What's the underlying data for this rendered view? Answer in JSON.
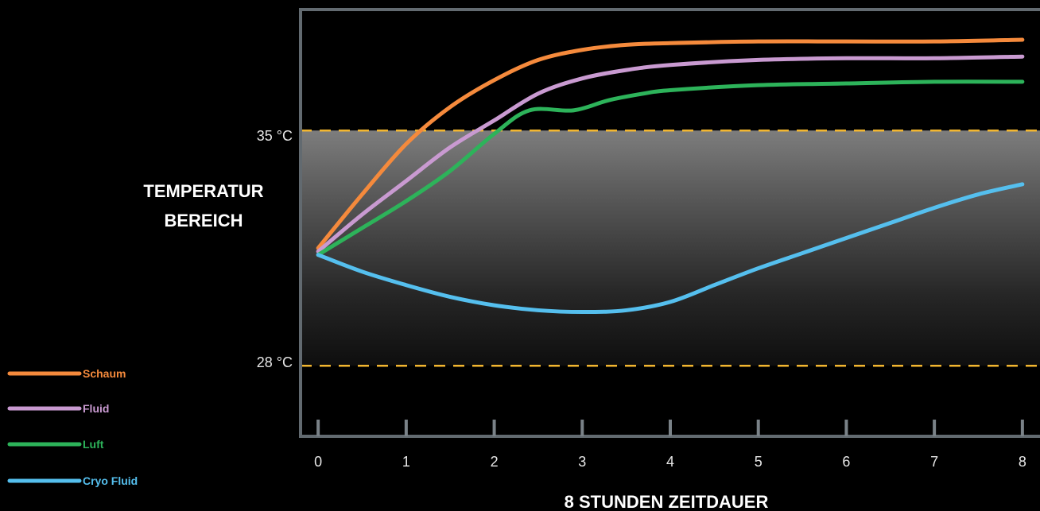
{
  "chart_data": {
    "type": "line",
    "xlabel": "8 STUNDEN ZEITDAUER",
    "ylabel": [
      "TEMPERATUR",
      "BEREICH"
    ],
    "x_ticks": [
      "0",
      "1",
      "2",
      "3",
      "4",
      "5",
      "6",
      "7",
      "8"
    ],
    "reference_lines": [
      {
        "label": "35 °C",
        "value": 35
      },
      {
        "label": "28 °C",
        "value": 28
      }
    ],
    "ylim": [
      25.9,
      38.6
    ],
    "xlim": [
      -0.2,
      8.2
    ],
    "grid": false,
    "legend_position": "bottom-left",
    "series": [
      {
        "name": "Schaum",
        "color": "#f58a3c",
        "x": [
          0,
          0.5,
          1,
          1.5,
          2,
          2.5,
          3,
          3.5,
          4,
          5,
          6,
          7,
          8
        ],
        "y": [
          31.5,
          33.1,
          34.6,
          35.7,
          36.5,
          37.1,
          37.4,
          37.55,
          37.6,
          37.65,
          37.65,
          37.65,
          37.7
        ]
      },
      {
        "name": "Fluid",
        "color": "#c99ad1",
        "x": [
          0,
          0.5,
          1,
          1.5,
          2,
          2.5,
          3,
          3.5,
          4,
          5,
          6,
          7,
          8
        ],
        "y": [
          31.4,
          32.5,
          33.5,
          34.5,
          35.3,
          36.1,
          36.55,
          36.8,
          36.95,
          37.1,
          37.15,
          37.15,
          37.2
        ]
      },
      {
        "name": "Luft",
        "color": "#2db35a",
        "x": [
          0,
          0.5,
          1,
          1.5,
          2,
          2.4,
          2.9,
          3.3,
          3.7,
          4,
          5,
          6,
          7,
          8
        ],
        "y": [
          31.3,
          32.1,
          32.9,
          33.8,
          34.9,
          35.6,
          35.6,
          35.9,
          36.1,
          36.2,
          36.35,
          36.4,
          36.45,
          36.45
        ]
      },
      {
        "name": "Cryo Fluid",
        "color": "#55bfee",
        "x": [
          0,
          0.5,
          1,
          1.5,
          2,
          2.5,
          3,
          3.5,
          4,
          4.5,
          5,
          5.5,
          6,
          6.5,
          7,
          7.5,
          8
        ],
        "y": [
          31.3,
          30.8,
          30.4,
          30.05,
          29.8,
          29.65,
          29.6,
          29.65,
          29.9,
          30.4,
          30.9,
          31.35,
          31.8,
          32.25,
          32.7,
          33.1,
          33.4
        ]
      }
    ]
  }
}
